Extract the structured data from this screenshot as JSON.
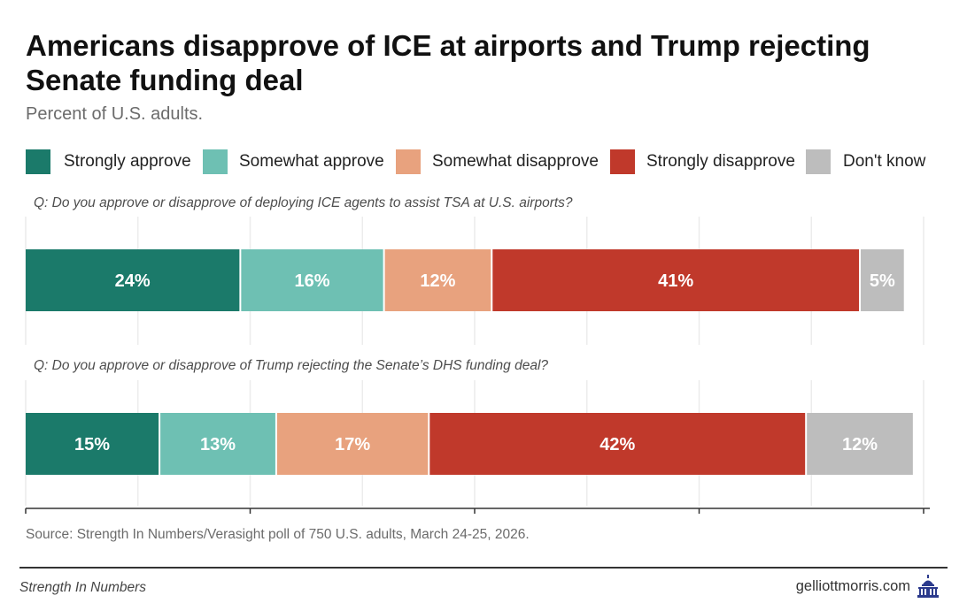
{
  "title": "Americans disapprove of ICE at airports and Trump rejecting Senate funding deal",
  "subtitle": "Percent of U.S. adults.",
  "legend": [
    {
      "label": "Strongly approve",
      "color": "#1b7a6a"
    },
    {
      "label": "Somewhat approve",
      "color": "#6ec0b3"
    },
    {
      "label": "Somewhat disapprove",
      "color": "#e8a27e"
    },
    {
      "label": "Strongly disapprove",
      "color": "#c0392b"
    },
    {
      "label": "Don't know",
      "color": "#bdbdbd"
    }
  ],
  "chart_data": {
    "type": "bar",
    "orientation": "horizontal-stacked",
    "unit": "%",
    "xlim": [
      0,
      100
    ],
    "categories": [
      "Q: Do you approve or disapprove of deploying ICE agents to assist TSA at U.S. airports?",
      "Q: Do you approve or disapprove of Trump rejecting the Senate’s DHS funding deal?"
    ],
    "series": [
      {
        "name": "Strongly approve",
        "color": "#1b7a6a",
        "values": [
          24,
          15
        ],
        "labels": [
          "24%",
          "15%"
        ]
      },
      {
        "name": "Somewhat approve",
        "color": "#6ec0b3",
        "values": [
          16,
          13
        ],
        "labels": [
          "16%",
          "13%"
        ]
      },
      {
        "name": "Somewhat disapprove",
        "color": "#e8a27e",
        "values": [
          12,
          17
        ],
        "labels": [
          "12%",
          "17%"
        ]
      },
      {
        "name": "Strongly disapprove",
        "color": "#c0392b",
        "values": [
          41,
          42
        ],
        "labels": [
          "41%",
          "42%"
        ]
      },
      {
        "name": "Don't know",
        "color": "#bdbdbd",
        "values": [
          5,
          12
        ],
        "labels": [
          "5%",
          "12%"
        ]
      }
    ]
  },
  "source": "Source: Strength In Numbers/Verasight poll of 750 U.S. adults, March 24-25, 2026.",
  "footer": {
    "left": "Strength In Numbers",
    "right": "gelliottmorris.com",
    "logo_icon": "capitol-building-icon"
  }
}
